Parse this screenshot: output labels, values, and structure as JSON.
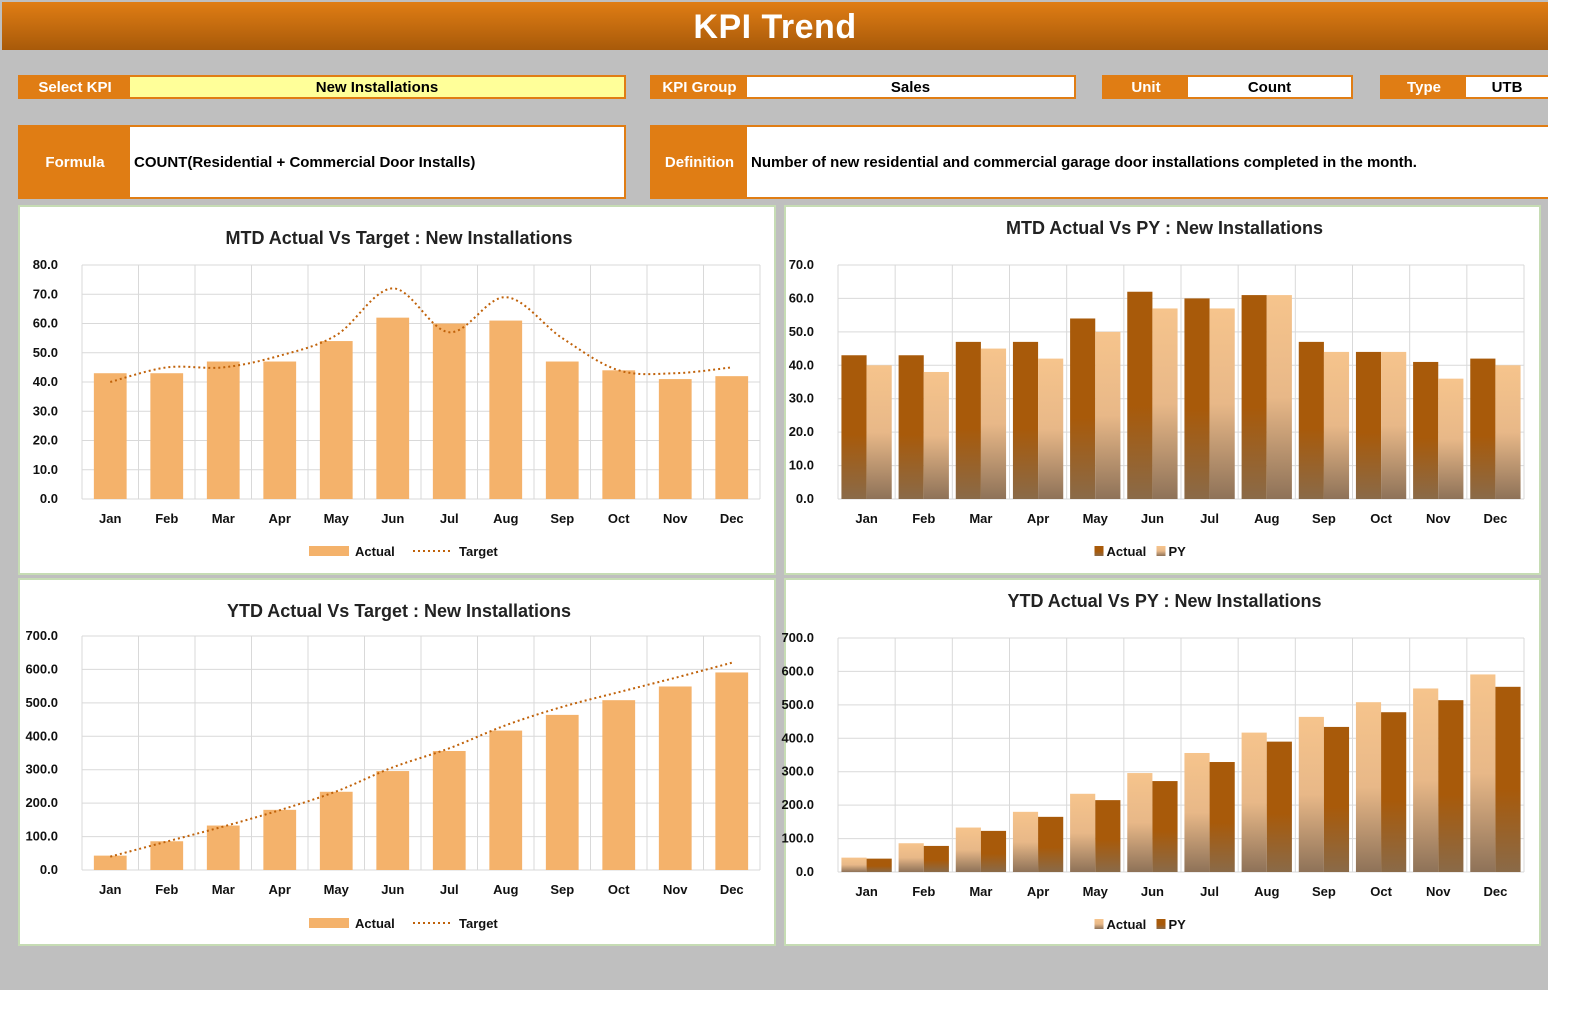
{
  "header": {
    "title": "KPI Trend"
  },
  "selectors": {
    "select_kpi": {
      "label": "Select KPI",
      "value": "New Installations"
    },
    "kpi_group": {
      "label": "KPI Group",
      "value": "Sales"
    },
    "unit": {
      "label": "Unit",
      "value": "Count"
    },
    "type": {
      "label": "Type",
      "value": "UTB"
    }
  },
  "info": {
    "formula": {
      "label": "Formula",
      "value": "COUNT(Residential + Commercial Door Installs)"
    },
    "definition": {
      "label": "Definition",
      "value": "Number of new residential and commercial garage door installations completed in the month."
    }
  },
  "colors": {
    "accent": "#e07d14",
    "actual_light": "#f4b26b",
    "actual_dark": "#a85a0a",
    "target_line": "#c0620a"
  },
  "chart_data": [
    {
      "type": "bar",
      "title": "MTD Actual Vs Target : New Installations",
      "categories": [
        "Jan",
        "Feb",
        "Mar",
        "Apr",
        "May",
        "Jun",
        "Jul",
        "Aug",
        "Sep",
        "Oct",
        "Nov",
        "Dec"
      ],
      "series": [
        {
          "name": "Actual",
          "type": "bar",
          "values": [
            43,
            43,
            47,
            47,
            54,
            62,
            60,
            61,
            47,
            44,
            41,
            42
          ]
        },
        {
          "name": "Target",
          "type": "line",
          "values": [
            40,
            45,
            45,
            49,
            56,
            72,
            57,
            69,
            55,
            44,
            43,
            45
          ]
        }
      ],
      "ylim": [
        0,
        80
      ],
      "yticks": [
        0,
        10,
        20,
        30,
        40,
        50,
        60,
        70,
        80
      ],
      "legend": "bottom",
      "grid": true
    },
    {
      "type": "bar",
      "title": "MTD Actual Vs PY : New Installations",
      "categories": [
        "Jan",
        "Feb",
        "Mar",
        "Apr",
        "May",
        "Jun",
        "Jul",
        "Aug",
        "Sep",
        "Oct",
        "Nov",
        "Dec"
      ],
      "series": [
        {
          "name": "Actual",
          "values": [
            43,
            43,
            47,
            47,
            54,
            62,
            60,
            61,
            47,
            44,
            41,
            42
          ]
        },
        {
          "name": "PY",
          "values": [
            40,
            38,
            45,
            42,
            50,
            57,
            57,
            61,
            44,
            44,
            36,
            40
          ]
        }
      ],
      "ylim": [
        0,
        70
      ],
      "yticks": [
        0,
        10,
        20,
        30,
        40,
        50,
        60,
        70
      ],
      "legend": "bottom",
      "grid": true
    },
    {
      "type": "bar",
      "title": "YTD Actual Vs Target : New Installations",
      "categories": [
        "Jan",
        "Feb",
        "Mar",
        "Apr",
        "May",
        "Jun",
        "Jul",
        "Aug",
        "Sep",
        "Oct",
        "Nov",
        "Dec"
      ],
      "series": [
        {
          "name": "Actual",
          "type": "bar",
          "values": [
            43,
            86,
            133,
            180,
            234,
            296,
            356,
            417,
            464,
            508,
            549,
            591
          ]
        },
        {
          "name": "Target",
          "type": "line",
          "values": [
            40,
            85,
            130,
            179,
            235,
            307,
            364,
            433,
            488,
            532,
            575,
            620
          ]
        }
      ],
      "ylim": [
        0,
        700
      ],
      "yticks": [
        0,
        100,
        200,
        300,
        400,
        500,
        600,
        700
      ],
      "legend": "bottom",
      "grid": true
    },
    {
      "type": "bar",
      "title": "YTD Actual Vs PY : New Installations",
      "categories": [
        "Jan",
        "Feb",
        "Mar",
        "Apr",
        "May",
        "Jun",
        "Jul",
        "Aug",
        "Sep",
        "Oct",
        "Nov",
        "Dec"
      ],
      "series": [
        {
          "name": "Actual",
          "values": [
            43,
            86,
            133,
            180,
            234,
            296,
            356,
            417,
            464,
            508,
            549,
            591
          ]
        },
        {
          "name": "PY",
          "values": [
            40,
            78,
            123,
            165,
            215,
            272,
            329,
            390,
            434,
            478,
            514,
            554
          ]
        }
      ],
      "ylim": [
        0,
        700
      ],
      "yticks": [
        0,
        100,
        200,
        300,
        400,
        500,
        600,
        700
      ],
      "legend": "bottom",
      "grid": true
    }
  ]
}
